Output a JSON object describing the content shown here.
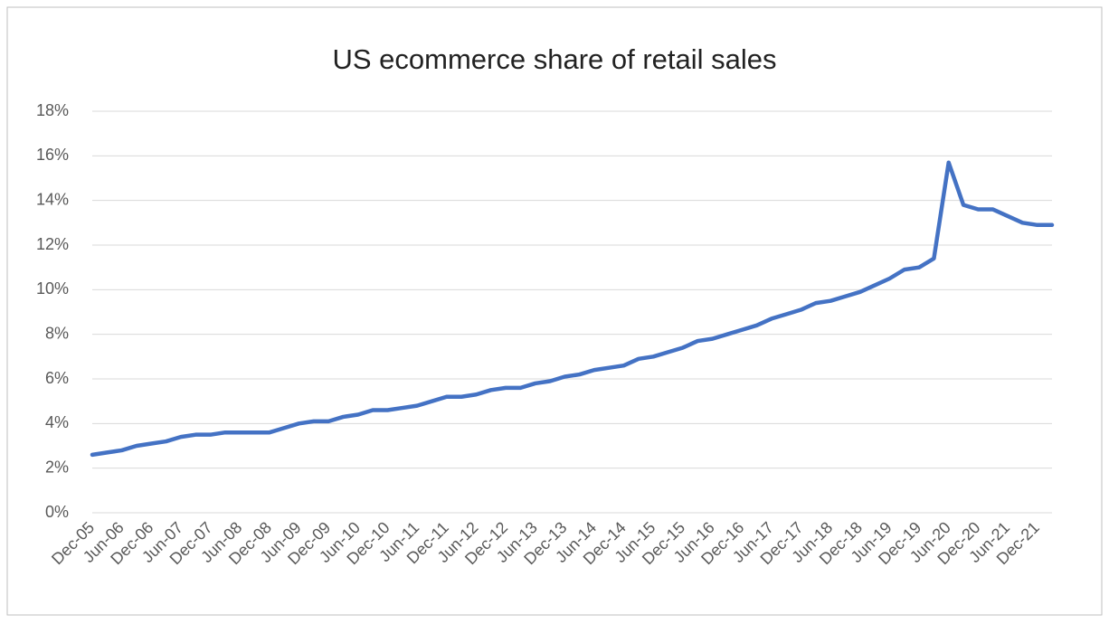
{
  "chart_data": {
    "type": "line",
    "title": "US ecommerce share of retail sales",
    "categories": [
      "Dec-05",
      null,
      "Jun-06",
      null,
      "Dec-06",
      null,
      "Jun-07",
      null,
      "Dec-07",
      null,
      "Jun-08",
      null,
      "Dec-08",
      null,
      "Jun-09",
      null,
      "Dec-09",
      null,
      "Jun-10",
      null,
      "Dec-10",
      null,
      "Jun-11",
      null,
      "Dec-11",
      null,
      "Jun-12",
      null,
      "Dec-12",
      null,
      "Jun-13",
      null,
      "Dec-13",
      null,
      "Jun-14",
      null,
      "Dec-14",
      null,
      "Jun-15",
      null,
      "Dec-15",
      null,
      "Jun-16",
      null,
      "Dec-16",
      null,
      "Jun-17",
      null,
      "Dec-17",
      null,
      "Jun-18",
      null,
      "Dec-18",
      null,
      "Jun-19",
      null,
      "Dec-19",
      null,
      "Jun-20",
      null,
      "Dec-20",
      null,
      "Jun-21",
      null,
      "Dec-21",
      null
    ],
    "values": [
      2.6,
      2.7,
      2.8,
      3.0,
      3.1,
      3.2,
      3.4,
      3.5,
      3.5,
      3.6,
      3.6,
      3.6,
      3.6,
      3.8,
      4.0,
      4.1,
      4.1,
      4.3,
      4.4,
      4.6,
      4.6,
      4.7,
      4.8,
      5.0,
      5.2,
      5.2,
      5.3,
      5.5,
      5.6,
      5.6,
      5.8,
      5.9,
      6.1,
      6.2,
      6.4,
      6.5,
      6.6,
      6.9,
      7.0,
      7.2,
      7.4,
      7.7,
      7.8,
      8.0,
      8.2,
      8.4,
      8.7,
      8.9,
      9.1,
      9.4,
      9.5,
      9.7,
      9.9,
      10.2,
      10.5,
      10.9,
      11.0,
      11.4,
      15.7,
      13.8,
      13.6,
      13.6,
      13.3,
      13.0,
      12.9,
      12.9
    ],
    "color": "#4472c4",
    "ylim": [
      0,
      18
    ],
    "yticks": [
      {
        "value": 0,
        "label": "0%"
      },
      {
        "value": 2,
        "label": "2%"
      },
      {
        "value": 4,
        "label": "4%"
      },
      {
        "value": 6,
        "label": "6%"
      },
      {
        "value": 8,
        "label": "8%"
      },
      {
        "value": 10,
        "label": "10%"
      },
      {
        "value": 12,
        "label": "12%"
      },
      {
        "value": 14,
        "label": "14%"
      },
      {
        "value": 16,
        "label": "16%"
      },
      {
        "value": 18,
        "label": "18%"
      }
    ],
    "grid": true
  }
}
